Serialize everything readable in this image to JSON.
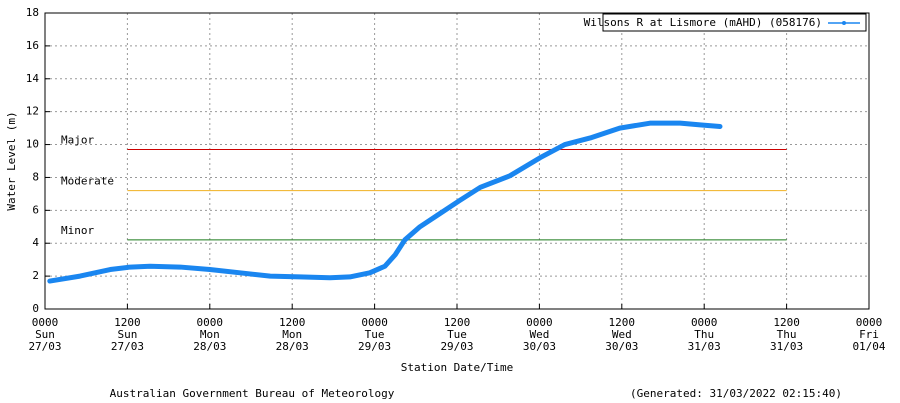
{
  "chart_data": {
    "type": "line",
    "legend_label": "Wilsons R at Lismore (mAHD) (058176)",
    "y_label": "Water Level (m)",
    "x_label": "Station Date/Time",
    "footer_left": "Australian Government Bureau of Meteorology",
    "footer_right": "(Generated: 31/03/2022 02:15:40)",
    "legend": "top-right",
    "grid": true,
    "xlim": [
      0,
      120
    ],
    "xticks": [
      {
        "value": 0,
        "label": [
          "0000",
          "Sun",
          "27/03"
        ]
      },
      {
        "value": 12,
        "label": [
          "1200",
          "Sun",
          "27/03"
        ]
      },
      {
        "value": 24,
        "label": [
          "0000",
          "Mon",
          "28/03"
        ]
      },
      {
        "value": 36,
        "label": [
          "1200",
          "Mon",
          "28/03"
        ]
      },
      {
        "value": 48,
        "label": [
          "0000",
          "Tue",
          "29/03"
        ]
      },
      {
        "value": 60,
        "label": [
          "1200",
          "Tue",
          "29/03"
        ]
      },
      {
        "value": 72,
        "label": [
          "0000",
          "Wed",
          "30/03"
        ]
      },
      {
        "value": 84,
        "label": [
          "1200",
          "Wed",
          "30/03"
        ]
      },
      {
        "value": 96,
        "label": [
          "0000",
          "Thu",
          "31/03"
        ]
      },
      {
        "value": 108,
        "label": [
          "1200",
          "Thu",
          "31/03"
        ]
      },
      {
        "value": 120,
        "label": [
          "0000",
          "Fri",
          "01/04"
        ]
      }
    ],
    "ylim": [
      0,
      18
    ],
    "yticks": [
      0,
      2,
      4,
      6,
      8,
      10,
      12,
      14,
      16,
      18
    ],
    "thresholds": [
      {
        "label": "Major",
        "value": 9.7,
        "color": "#cc0000",
        "xrange": [
          12,
          108
        ]
      },
      {
        "label": "Moderate",
        "value": 7.2,
        "color": "#f0b020",
        "xrange": [
          12,
          108
        ]
      },
      {
        "label": "Minor",
        "value": 4.2,
        "color": "#1a7a1a",
        "xrange": [
          12,
          108
        ]
      }
    ],
    "series": [
      {
        "name": "Wilsons R at Lismore (mAHD) (058176)",
        "color": "#1a86f0",
        "x": [
          0.7,
          5.1,
          9.5,
          12.4,
          15.3,
          19.7,
          24,
          28.4,
          32.8,
          37.1,
          41.5,
          44.4,
          47.3,
          49.5,
          51,
          52.4,
          54.6,
          57.5,
          60.4,
          63.4,
          67.7,
          72.1,
          75.7,
          79.4,
          83.7,
          88.1,
          92.5,
          95.4,
          98.3
        ],
        "values": [
          1.7,
          2.0,
          2.4,
          2.55,
          2.6,
          2.55,
          2.4,
          2.2,
          2.0,
          1.95,
          1.9,
          1.95,
          2.2,
          2.6,
          3.3,
          4.2,
          5.0,
          5.8,
          6.6,
          7.4,
          8.1,
          9.2,
          10.0,
          10.4,
          11.0,
          11.3,
          11.3,
          11.2,
          11.1
        ]
      }
    ]
  }
}
